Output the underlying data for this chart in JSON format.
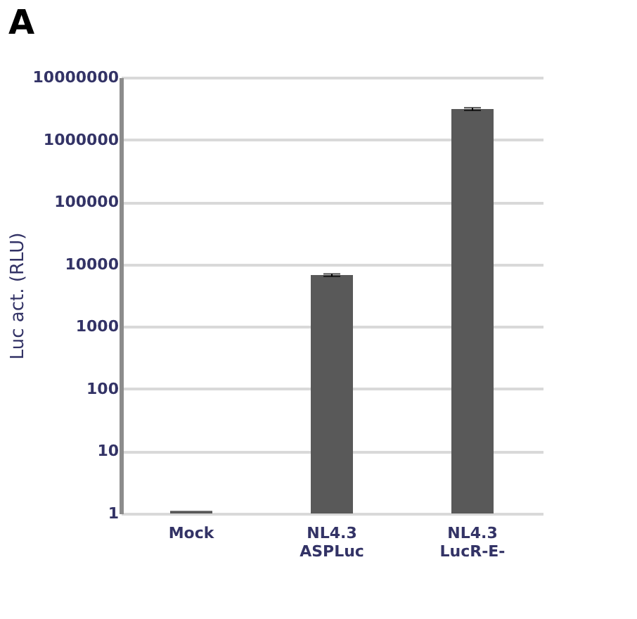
{
  "chart_data": {
    "type": "bar",
    "title": "A",
    "ylabel": "Luc act. (RLU)",
    "categories": [
      "Mock",
      "NL4.3 ASPLuc",
      "NL4.3 LucR-E-"
    ],
    "values": [
      1.1,
      6700,
      3100000
    ],
    "errors": [
      null,
      300,
      150000
    ],
    "color": "#595959",
    "log": true,
    "grid": "y",
    "ylim": [
      1,
      10000000
    ],
    "yticks": [
      1,
      10,
      100,
      1000,
      10000,
      100000,
      1000000,
      10000000
    ]
  }
}
